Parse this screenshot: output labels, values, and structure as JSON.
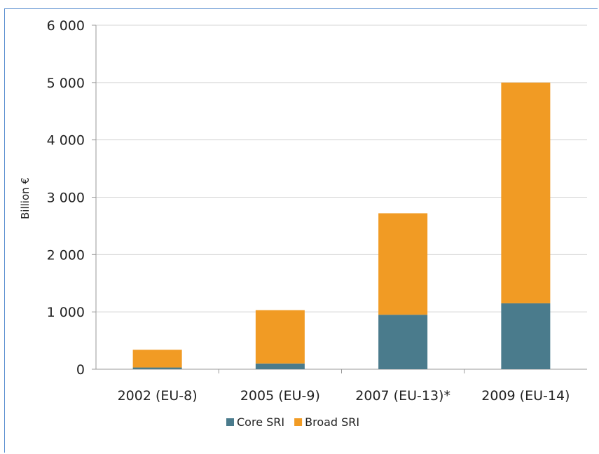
{
  "chart_data": {
    "type": "bar",
    "stacked": true,
    "categories": [
      "2002 (EU-8)",
      "2005 (EU-9)",
      "2007 (EU-13)*",
      "2009 (EU-14)"
    ],
    "series": [
      {
        "name": "Core SRI",
        "color": "#4a7b8c",
        "values": [
          30,
          100,
          950,
          1150
        ]
      },
      {
        "name": "Broad SRI",
        "color": "#f19b24",
        "values": [
          310,
          930,
          1770,
          3850
        ]
      }
    ],
    "title": "",
    "xlabel": "",
    "ylabel": "Billion €",
    "ylim": [
      0,
      6000
    ],
    "yticks": [
      0,
      1000,
      2000,
      3000,
      4000,
      5000,
      6000
    ],
    "ytick_labels": [
      "0",
      "1 000",
      "2 000",
      "3 000",
      "4 000",
      "5 000",
      "6 000"
    ],
    "grid": true,
    "legend_position": "bottom"
  }
}
